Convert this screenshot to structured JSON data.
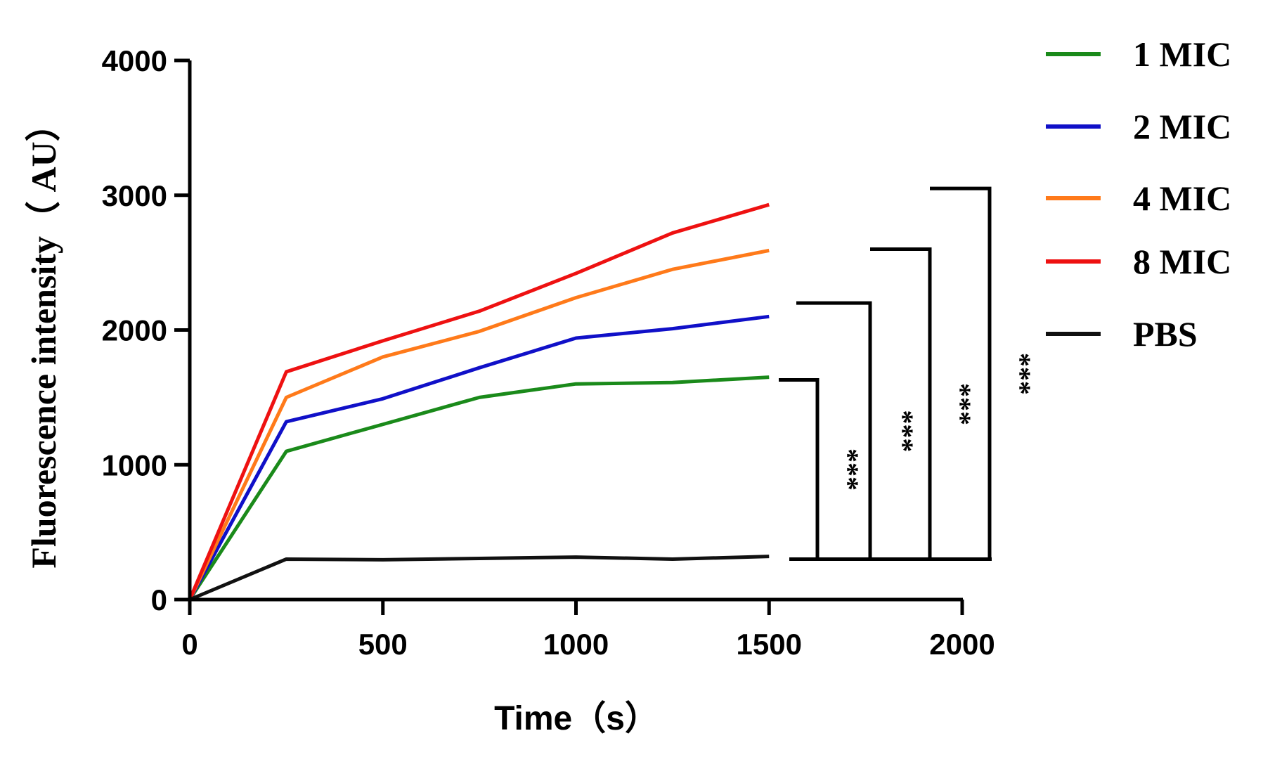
{
  "chart_data": {
    "type": "line",
    "xlabel": "Time（s）",
    "ylabel": "Fluorescence intensity（ AU）",
    "x": [
      0,
      250,
      500,
      750,
      1000,
      1250,
      1500
    ],
    "xlim": [
      0,
      2000
    ],
    "ylim": [
      0,
      4000
    ],
    "xticks": [
      "0",
      "500",
      "1000",
      "1500",
      "2000"
    ],
    "yticks": [
      "0",
      "1000",
      "2000",
      "3000",
      "4000"
    ],
    "xtick_values": [
      0,
      500,
      1000,
      1500,
      2000
    ],
    "ytick_values": [
      0,
      1000,
      2000,
      3000,
      4000
    ],
    "series": [
      {
        "name": "1 MIC",
        "color": "#1a8a1a",
        "values": [
          0,
          1100,
          1300,
          1500,
          1600,
          1610,
          1650
        ]
      },
      {
        "name": "2 MIC",
        "color": "#1010c8",
        "values": [
          0,
          1320,
          1490,
          1720,
          1940,
          2010,
          2100
        ]
      },
      {
        "name": "4 MIC",
        "color": "#ff7a1a",
        "values": [
          0,
          1500,
          1800,
          1990,
          2240,
          2450,
          2590
        ]
      },
      {
        "name": "8 MIC",
        "color": "#ee1111",
        "values": [
          0,
          1690,
          1920,
          2140,
          2420,
          2720,
          2930
        ]
      },
      {
        "name": "PBS",
        "color": "#111111",
        "values": [
          0,
          300,
          295,
          305,
          315,
          300,
          320
        ]
      }
    ],
    "significance": [
      {
        "label": "***",
        "compare": "1 MIC vs PBS",
        "top": 1630,
        "bottom": 300
      },
      {
        "label": "***",
        "compare": "2 MIC vs PBS",
        "top": 2200,
        "bottom": 300
      },
      {
        "label": "***",
        "compare": "4 MIC vs PBS",
        "top": 2600,
        "bottom": 300
      },
      {
        "label": "***",
        "compare": "8 MIC vs PBS",
        "top": 3050,
        "bottom": 300
      }
    ]
  }
}
